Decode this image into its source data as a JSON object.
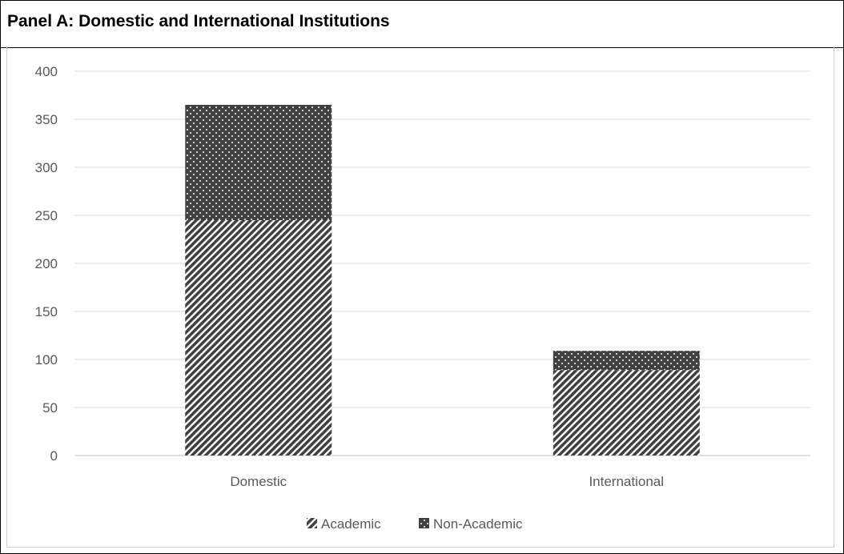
{
  "title": "Panel A: Domestic and International Institutions",
  "chart_data": {
    "type": "bar",
    "stacked": true,
    "categories": [
      "Domestic",
      "International"
    ],
    "series": [
      {
        "name": "Academic",
        "values": [
          245,
          89
        ],
        "pattern": "diagonal-hatch",
        "color": "#404040"
      },
      {
        "name": "Non-Academic",
        "values": [
          120,
          20
        ],
        "pattern": "dots",
        "color": "#404040"
      }
    ],
    "ylim": [
      0,
      400
    ],
    "yticks": [
      0,
      50,
      100,
      150,
      200,
      250,
      300,
      350,
      400
    ],
    "ytick_labels": [
      "0",
      "50",
      "100",
      "150",
      "200",
      "250",
      "300",
      "350",
      "400"
    ],
    "grid": true,
    "legend": "bottom"
  }
}
